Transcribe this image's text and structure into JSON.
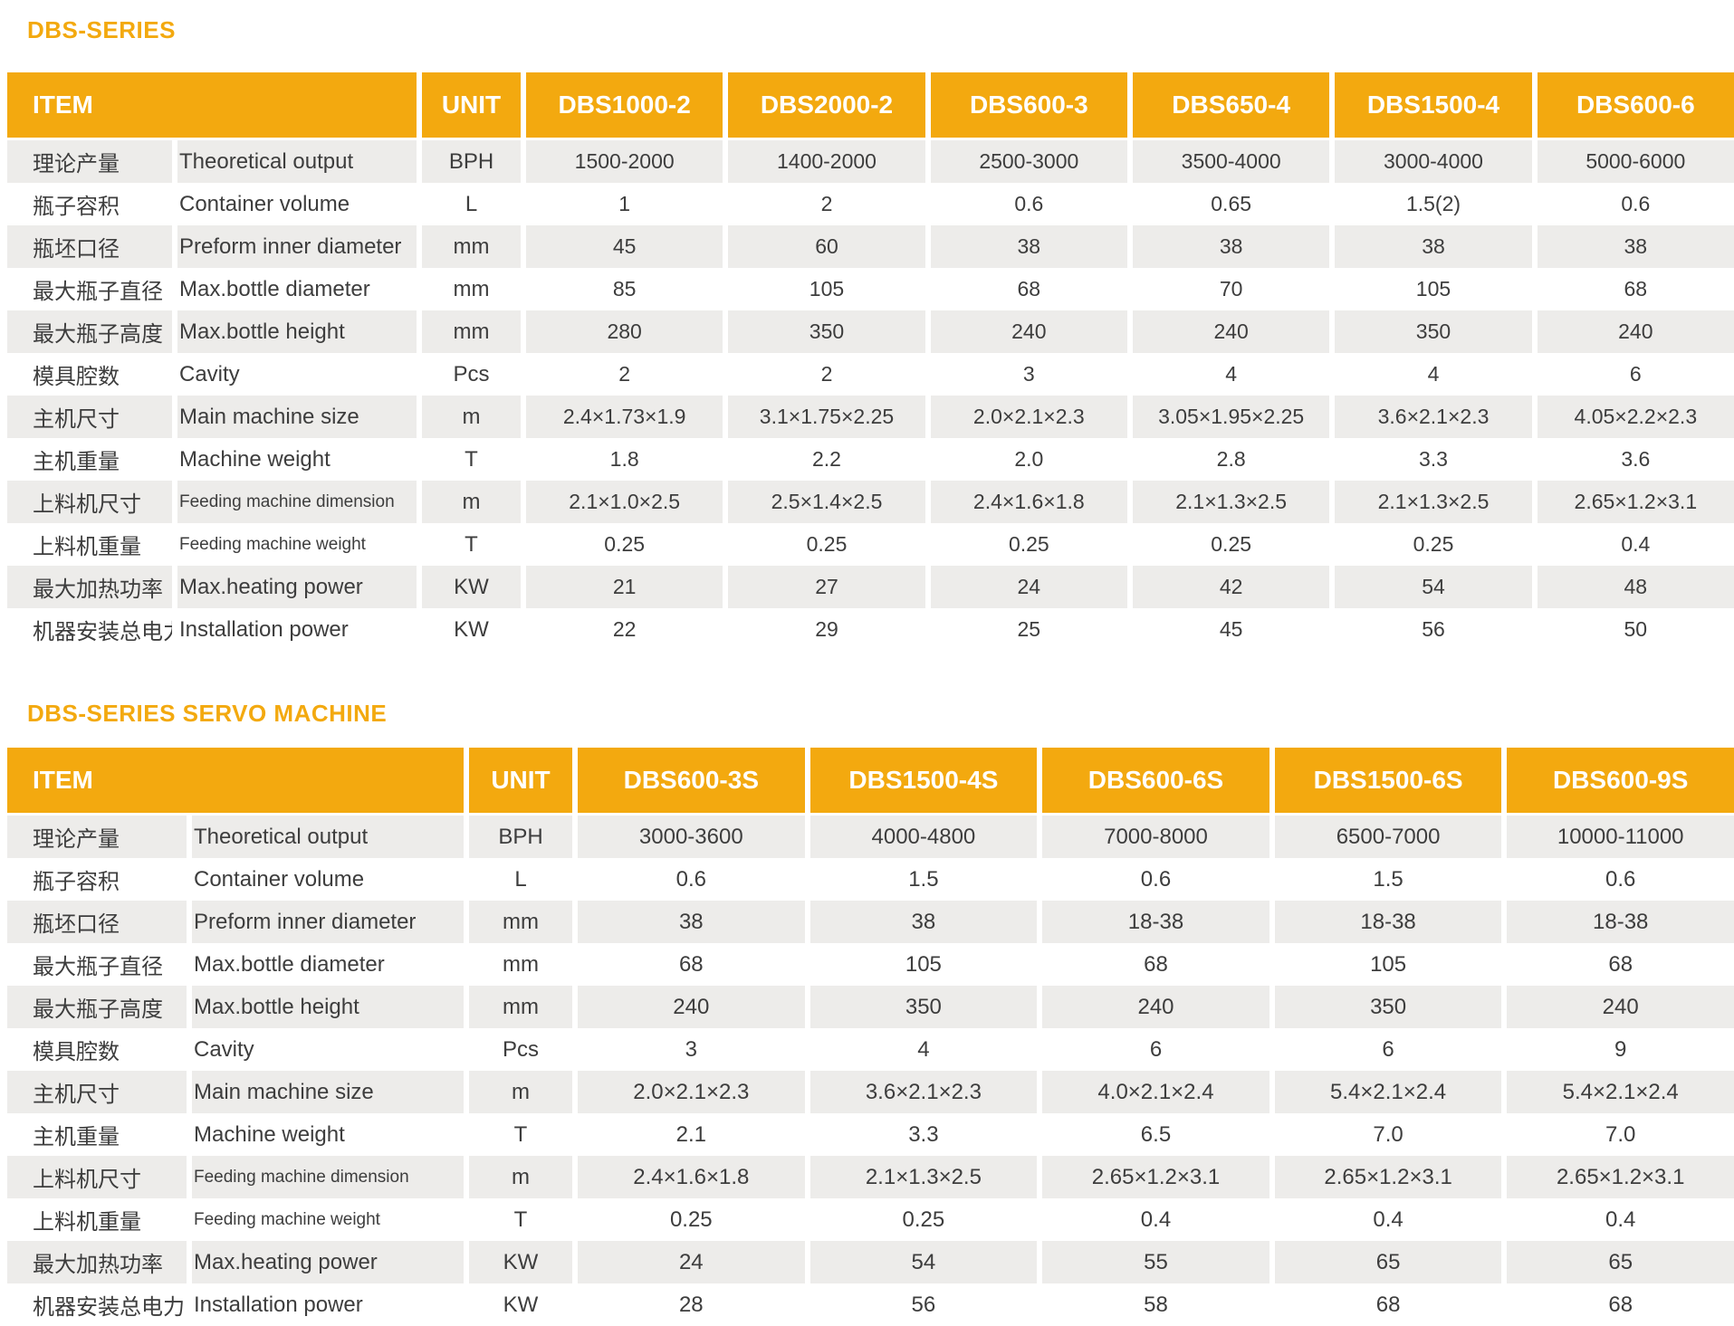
{
  "colors": {
    "accent": "#F3A90F",
    "row_stripe": "#EDECEA",
    "header_text": "#FFFFFF",
    "body_text": "#3D3D3D"
  },
  "tables": [
    {
      "title": "DBS-SERIES",
      "item_header": "ITEM",
      "unit_header": "UNIT",
      "models": [
        "DBS1000-2",
        "DBS2000-2",
        "DBS600-3",
        "DBS650-4",
        "DBS1500-4",
        "DBS600-6"
      ],
      "rows": [
        {
          "zh": "理论产量",
          "en": "Theoretical output",
          "unit": "BPH",
          "values": [
            "1500-2000",
            "1400-2000",
            "2500-3000",
            "3500-4000",
            "3000-4000",
            "5000-6000"
          ]
        },
        {
          "zh": "瓶子容积",
          "en": "Container volume",
          "unit": "L",
          "values": [
            "1",
            "2",
            "0.6",
            "0.65",
            "1.5(2)",
            "0.6"
          ]
        },
        {
          "zh": "瓶坯口径",
          "en": "Preform inner diameter",
          "unit": "mm",
          "values": [
            "45",
            "60",
            "38",
            "38",
            "38",
            "38"
          ]
        },
        {
          "zh": "最大瓶子直径",
          "en": "Max.bottle diameter",
          "unit": "mm",
          "values": [
            "85",
            "105",
            "68",
            "70",
            "105",
            "68"
          ]
        },
        {
          "zh": "最大瓶子高度",
          "en": "Max.bottle height",
          "unit": "mm",
          "values": [
            "280",
            "350",
            "240",
            "240",
            "350",
            "240"
          ]
        },
        {
          "zh": "模具腔数",
          "en": "Cavity",
          "unit": "Pcs",
          "values": [
            "2",
            "2",
            "3",
            "4",
            "4",
            "6"
          ]
        },
        {
          "zh": "主机尺寸",
          "en": "Main machine size",
          "unit": "m",
          "values": [
            "2.4×1.73×1.9",
            "3.1×1.75×2.25",
            "2.0×2.1×2.3",
            "3.05×1.95×2.25",
            "3.6×2.1×2.3",
            "4.05×2.2×2.3"
          ]
        },
        {
          "zh": "主机重量",
          "en": "Machine weight",
          "unit": "T",
          "values": [
            "1.8",
            "2.2",
            "2.0",
            "2.8",
            "3.3",
            "3.6"
          ]
        },
        {
          "zh": "上料机尺寸",
          "en": "Feeding machine dimension",
          "unit": "m",
          "values": [
            "2.1×1.0×2.5",
            "2.5×1.4×2.5",
            "2.4×1.6×1.8",
            "2.1×1.3×2.5",
            "2.1×1.3×2.5",
            "2.65×1.2×3.1"
          ]
        },
        {
          "zh": "上料机重量",
          "en": "Feeding machine weight",
          "unit": "T",
          "values": [
            "0.25",
            "0.25",
            "0.25",
            "0.25",
            "0.25",
            "0.4"
          ]
        },
        {
          "zh": "最大加热功率",
          "en": "Max.heating power",
          "unit": "KW",
          "values": [
            "21",
            "27",
            "24",
            "42",
            "54",
            "48"
          ]
        },
        {
          "zh": "机器安装总电力",
          "en": "Installation power",
          "unit": "KW",
          "values": [
            "22",
            "29",
            "25",
            "45",
            "56",
            "50"
          ]
        }
      ]
    },
    {
      "title": "DBS-SERIES SERVO MACHINE",
      "item_header": "ITEM",
      "unit_header": "UNIT",
      "models": [
        "DBS600-3S",
        "DBS1500-4S",
        "DBS600-6S",
        "DBS1500-6S",
        "DBS600-9S"
      ],
      "rows": [
        {
          "zh": "理论产量",
          "en": "Theoretical output",
          "unit": "BPH",
          "values": [
            "3000-3600",
            "4000-4800",
            "7000-8000",
            "6500-7000",
            "10000-11000"
          ]
        },
        {
          "zh": "瓶子容积",
          "en": "Container volume",
          "unit": "L",
          "values": [
            "0.6",
            "1.5",
            "0.6",
            "1.5",
            "0.6"
          ]
        },
        {
          "zh": "瓶坯口径",
          "en": "Preform inner diameter",
          "unit": "mm",
          "values": [
            "38",
            "38",
            "18-38",
            "18-38",
            "18-38"
          ]
        },
        {
          "zh": "最大瓶子直径",
          "en": "Max.bottle diameter",
          "unit": "mm",
          "values": [
            "68",
            "105",
            "68",
            "105",
            "68"
          ]
        },
        {
          "zh": "最大瓶子高度",
          "en": "Max.bottle height",
          "unit": "mm",
          "values": [
            "240",
            "350",
            "240",
            "350",
            "240"
          ]
        },
        {
          "zh": "模具腔数",
          "en": "Cavity",
          "unit": "Pcs",
          "values": [
            "3",
            "4",
            "6",
            "6",
            "9"
          ]
        },
        {
          "zh": "主机尺寸",
          "en": "Main machine size",
          "unit": "m",
          "values": [
            "2.0×2.1×2.3",
            "3.6×2.1×2.3",
            "4.0×2.1×2.4",
            "5.4×2.1×2.4",
            "5.4×2.1×2.4"
          ]
        },
        {
          "zh": "主机重量",
          "en": "Machine weight",
          "unit": "T",
          "values": [
            "2.1",
            "3.3",
            "6.5",
            "7.0",
            "7.0"
          ]
        },
        {
          "zh": "上料机尺寸",
          "en": "Feeding machine dimension",
          "unit": "m",
          "values": [
            "2.4×1.6×1.8",
            "2.1×1.3×2.5",
            "2.65×1.2×3.1",
            "2.65×1.2×3.1",
            "2.65×1.2×3.1"
          ]
        },
        {
          "zh": "上料机重量",
          "en": "Feeding machine weight",
          "unit": "T",
          "values": [
            "0.25",
            "0.25",
            "0.4",
            "0.4",
            "0.4"
          ]
        },
        {
          "zh": "最大加热功率",
          "en": "Max.heating power",
          "unit": "KW",
          "values": [
            "24",
            "54",
            "55",
            "65",
            "65"
          ]
        },
        {
          "zh": "机器安装总电力",
          "en": "Installation power",
          "unit": "KW",
          "values": [
            "28",
            "56",
            "58",
            "68",
            "68"
          ]
        }
      ]
    }
  ]
}
